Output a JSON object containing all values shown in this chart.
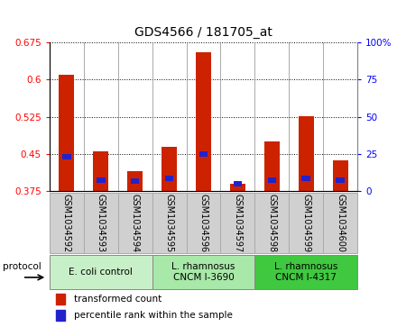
{
  "title": "GDS4566 / 181705_at",
  "samples": [
    "GSM1034592",
    "GSM1034593",
    "GSM1034594",
    "GSM1034595",
    "GSM1034596",
    "GSM1034597",
    "GSM1034598",
    "GSM1034599",
    "GSM1034600"
  ],
  "red_values": [
    0.61,
    0.455,
    0.415,
    0.465,
    0.655,
    0.39,
    0.475,
    0.527,
    0.438
  ],
  "blue_positions": [
    0.44,
    0.392,
    0.39,
    0.396,
    0.445,
    0.385,
    0.392,
    0.396,
    0.392
  ],
  "blue_bar_height": 0.011,
  "ylim_left": [
    0.375,
    0.675
  ],
  "ylim_right": [
    0,
    100
  ],
  "yticks_left": [
    0.375,
    0.45,
    0.525,
    0.6,
    0.675
  ],
  "yticks_right": [
    0,
    25,
    50,
    75,
    100
  ],
  "ytick_labels_left": [
    "0.375",
    "0.45",
    "0.525",
    "0.6",
    "0.675"
  ],
  "ytick_labels_right": [
    "0",
    "25",
    "50",
    "75",
    "100%"
  ],
  "base": 0.375,
  "groups": [
    {
      "label": "E. coli control",
      "start": 0,
      "end": 3,
      "color": "#c8f0c8"
    },
    {
      "label": "L. rhamnosus\nCNCM I-3690",
      "start": 3,
      "end": 6,
      "color": "#a8e8a8"
    },
    {
      "label": "L. rhamnosus\nCNCM I-4317",
      "start": 6,
      "end": 9,
      "color": "#40c840"
    }
  ],
  "bar_color": "#cc2200",
  "blue_color": "#2222cc",
  "legend_items": [
    "transformed count",
    "percentile rank within the sample"
  ],
  "legend_colors": [
    "#cc2200",
    "#2222cc"
  ],
  "bar_width": 0.45,
  "blue_bar_width": 0.25,
  "sample_box_color": "#d0d0d0",
  "plot_bg_color": "#ffffff",
  "grid_color": "#000000",
  "grid_style": "dotted",
  "grid_lw": 0.7,
  "spine_color": "#888888"
}
